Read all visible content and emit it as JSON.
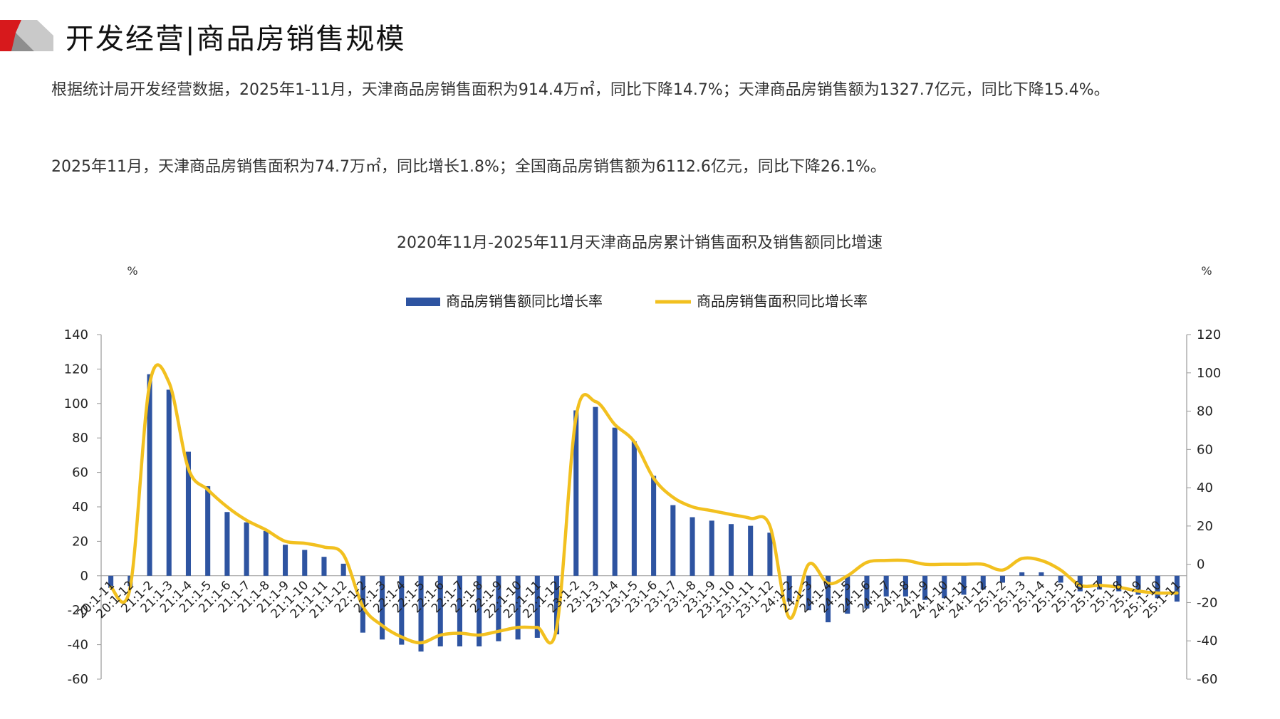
{
  "header": {
    "title": "开发经营|商品房销售规模"
  },
  "paragraphs": {
    "p1": "根据统计局开发经营数据，2025年1-11月，天津商品房销售面积为914.4万㎡，同比下降14.7%；天津商品房销售额为1327.7亿元，同比下降15.4%。",
    "p2": "2025年11月，天津商品房销售面积为74.7万㎡，同比增长1.8%；全国商品房销售额为6112.6亿元，同比下降26.1%。"
  },
  "colors": {
    "bar": "#2e54a1",
    "line": "#f2c01f",
    "logo_red": "#d7191c"
  },
  "chart_data": {
    "type": "bar+line",
    "title": "2020年11月-2025年11月天津商品房累计销售面积及销售额同比增速",
    "y_unit_left": "%",
    "y_unit_right": "%",
    "y_left_ticks": [
      140,
      120,
      100,
      80,
      60,
      40,
      20,
      0,
      -20,
      -40,
      -60
    ],
    "y_right_ticks": [
      120,
      100,
      80,
      60,
      40,
      20,
      0,
      -20,
      -40,
      -60
    ],
    "ylim_left": [
      -60,
      140
    ],
    "ylim_right": [
      -60,
      120
    ],
    "legend_position": "top-center",
    "categories": [
      "20:1-11",
      "20:1-12",
      "21:1-2",
      "21:1-3",
      "21:1-4",
      "21:1-5",
      "21:1-6",
      "21:1-7",
      "21:1-8",
      "21:1-9",
      "21:1-10",
      "21:1-11",
      "21:1-12",
      "22:1-2",
      "22:1-3",
      "22:1-4",
      "22:1-5",
      "22:1-6",
      "22:1-7",
      "22:1-8",
      "22:1-9",
      "22:1-10",
      "22:1-11",
      "22:1-12",
      "23:1-2",
      "23:1-3",
      "23:1-4",
      "23:1-5",
      "23:1-6",
      "23:1-7",
      "23:1-8",
      "23:1-9",
      "23:1-10",
      "23:1-11",
      "23:1-12",
      "24:1-2",
      "24:1-3",
      "24:1-4",
      "24:1-5",
      "24:1-6",
      "24:1-7",
      "24:1-8",
      "24:1-9",
      "24:1-10",
      "24:1-11",
      "24:1-12",
      "25:1-2",
      "25:1-3",
      "25:1-4",
      "25:1-5",
      "25:1-6",
      "25:1-7",
      "25:1-8",
      "25:1-9",
      "25:1-10",
      "25:1-11"
    ],
    "series": [
      {
        "name": "商品房销售额同比增长率",
        "type": "bar",
        "axis": "left",
        "values": [
          -7,
          -6,
          117,
          108,
          72,
          52,
          37,
          31,
          26,
          18,
          15,
          11,
          7,
          -33,
          -37,
          -40,
          -44,
          -41,
          -41,
          -41,
          -38,
          -37,
          -36,
          -34,
          96,
          98,
          86,
          78,
          58,
          41,
          34,
          32,
          30,
          29,
          25,
          -15,
          -20,
          -27,
          -22,
          -19,
          -12,
          -12,
          -14,
          -13,
          -11,
          -8,
          -4,
          2,
          2,
          -4,
          -9,
          -8,
          -9,
          -11,
          -13,
          -15
        ]
      },
      {
        "name": "商品房销售面积同比增长率",
        "type": "line",
        "axis": "right",
        "values": [
          -12,
          -12,
          94,
          95,
          50,
          39,
          30,
          23,
          18,
          12,
          11,
          9,
          5,
          -22,
          -32,
          -38,
          -41,
          -37,
          -36,
          -37,
          -35,
          -33,
          -33,
          -33,
          77,
          85,
          73,
          64,
          45,
          35,
          30,
          28,
          26,
          24,
          20,
          -28,
          0,
          -10,
          -6,
          1,
          2,
          2,
          0,
          0,
          0,
          0,
          -3,
          3,
          2,
          -3,
          -11,
          -11,
          -12,
          -14,
          -15,
          -15
        ]
      }
    ]
  }
}
